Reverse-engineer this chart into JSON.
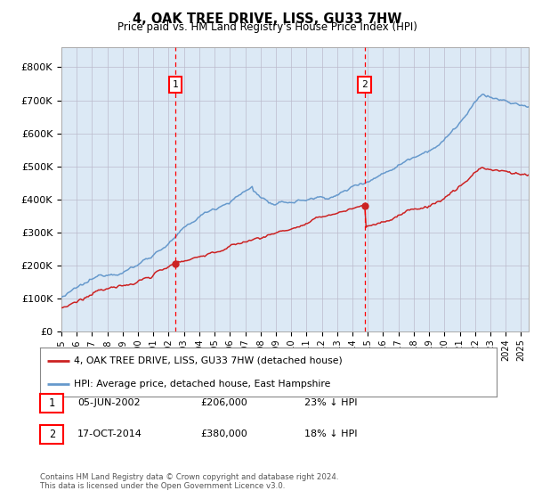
{
  "title": "4, OAK TREE DRIVE, LISS, GU33 7HW",
  "subtitle": "Price paid vs. HM Land Registry's House Price Index (HPI)",
  "background_color": "#dce9f5",
  "plot_bg_color": "#dce9f5",
  "yticks": [
    0,
    100000,
    200000,
    300000,
    400000,
    500000,
    600000,
    700000,
    800000
  ],
  "ytick_labels": [
    "£0",
    "£100K",
    "£200K",
    "£300K",
    "£400K",
    "£500K",
    "£600K",
    "£700K",
    "£800K"
  ],
  "xlim_start": 1995.0,
  "xlim_end": 2025.5,
  "ylim_min": 0,
  "ylim_max": 860000,
  "hpi_color": "#6699cc",
  "price_color": "#cc2222",
  "marker1_date": 2002.43,
  "marker1_price": 206000,
  "marker1_label": "05-JUN-2002",
  "marker1_amount": "£206,000",
  "marker1_pct": "23% ↓ HPI",
  "marker2_date": 2014.79,
  "marker2_price": 380000,
  "marker2_label": "17-OCT-2014",
  "marker2_amount": "£380,000",
  "marker2_pct": "18% ↓ HPI",
  "legend_line1": "4, OAK TREE DRIVE, LISS, GU33 7HW (detached house)",
  "legend_line2": "HPI: Average price, detached house, East Hampshire",
  "footer": "Contains HM Land Registry data © Crown copyright and database right 2024.\nThis data is licensed under the Open Government Licence v3.0.",
  "xticks": [
    1995,
    1996,
    1997,
    1998,
    1999,
    2000,
    2001,
    2002,
    2003,
    2004,
    2005,
    2006,
    2007,
    2008,
    2009,
    2010,
    2011,
    2012,
    2013,
    2014,
    2015,
    2016,
    2017,
    2018,
    2019,
    2020,
    2021,
    2022,
    2023,
    2024,
    2025
  ]
}
